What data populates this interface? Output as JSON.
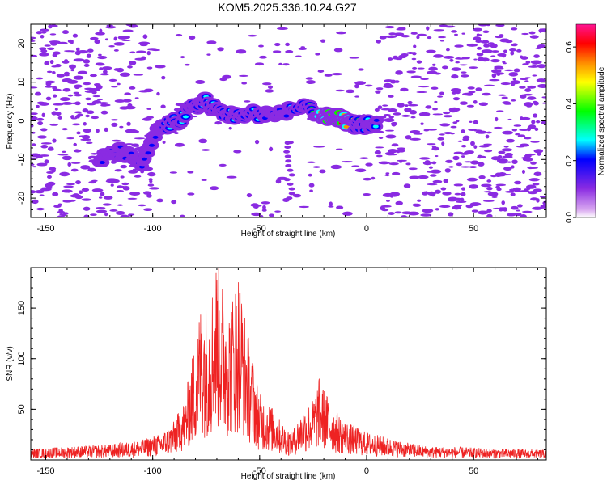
{
  "title": "KOM5.2025.336.10.24.G27",
  "colors": {
    "background": "#ffffff",
    "axes": "#000000",
    "snr_line": "#ee2222"
  },
  "chart_data": [
    {
      "type": "heatmap",
      "name": "spectrogram",
      "title": "KOM5.2025.336.10.24.G27",
      "xlabel": "Height of straight line (km)",
      "ylabel": "Frequency (Hz)",
      "xlim": [
        -157,
        84
      ],
      "ylim": [
        -25,
        25
      ],
      "xticks": [
        -150,
        -100,
        -50,
        0,
        50
      ],
      "yticks": [
        -20,
        -10,
        0,
        10,
        20
      ],
      "colorbar": {
        "label": "Normalized spectral amplitude",
        "range": [
          0,
          0.68
        ],
        "ticks": [
          0.0,
          0.2,
          0.4,
          0.6
        ],
        "tick_labels": [
          "0.0",
          "0.2",
          "0.4",
          "0.6"
        ],
        "colors": [
          "#ffffff",
          "#d9a8f0",
          "#8a2be2",
          "#0000ff",
          "#00ffff",
          "#00ff00",
          "#ffff00",
          "#ff8c00",
          "#ff0000",
          "#ff1493"
        ]
      },
      "ridge": {
        "description_points": [
          {
            "x": -125,
            "f": -10,
            "a": 0.18
          },
          {
            "x": -115,
            "f": -8,
            "a": 0.17
          },
          {
            "x": -105,
            "f": -11,
            "a": 0.2
          },
          {
            "x": -97,
            "f": -2,
            "a": 0.2
          },
          {
            "x": -88,
            "f": 0,
            "a": 0.22
          },
          {
            "x": -80,
            "f": 4,
            "a": 0.28
          },
          {
            "x": -75,
            "f": 5,
            "a": 0.25
          },
          {
            "x": -68,
            "f": 2,
            "a": 0.26
          },
          {
            "x": -60,
            "f": 1,
            "a": 0.26
          },
          {
            "x": -52,
            "f": 2,
            "a": 0.24
          },
          {
            "x": -45,
            "f": 1,
            "a": 0.18
          },
          {
            "x": -30,
            "f": 4,
            "a": 0.22
          },
          {
            "x": -20,
            "f": 1,
            "a": 0.52
          },
          {
            "x": -14,
            "f": 1,
            "a": 0.62
          },
          {
            "x": -6,
            "f": -1,
            "a": 0.4
          },
          {
            "x": 0,
            "f": -1,
            "a": 0.25
          },
          {
            "x": 5,
            "f": 0,
            "a": 0.2
          }
        ],
        "gap_column": {
          "x": -36,
          "f_range": [
            -20,
            -5
          ],
          "a": 0.08
        }
      }
    },
    {
      "type": "line",
      "name": "snr",
      "xlabel": "Height of straight line (km)",
      "ylabel": "SNR (v/v)",
      "xlim": [
        -157,
        84
      ],
      "ylim": [
        0,
        190
      ],
      "xticks": [
        -150,
        -100,
        -50,
        0,
        50
      ],
      "yticks": [
        50,
        100,
        150
      ],
      "series": [
        {
          "name": "SNR",
          "color": "#ee2222",
          "x": [
            -157,
            -140,
            -120,
            -105,
            -95,
            -90,
            -85,
            -80,
            -77,
            -74,
            -72,
            -70,
            -68,
            -66,
            -64,
            -62,
            -60,
            -58,
            -56,
            -54,
            -50,
            -45,
            -40,
            -35,
            -30,
            -25,
            -22,
            -20,
            -15,
            -10,
            -5,
            0,
            10,
            20,
            30,
            40,
            50,
            60,
            70,
            84
          ],
          "values": [
            10,
            12,
            14,
            18,
            25,
            35,
            55,
            110,
            150,
            140,
            160,
            185,
            165,
            150,
            140,
            155,
            175,
            150,
            120,
            100,
            60,
            50,
            35,
            25,
            45,
            55,
            75,
            65,
            45,
            35,
            30,
            25,
            20,
            15,
            12,
            12,
            11,
            10,
            10,
            9
          ]
        }
      ]
    }
  ]
}
